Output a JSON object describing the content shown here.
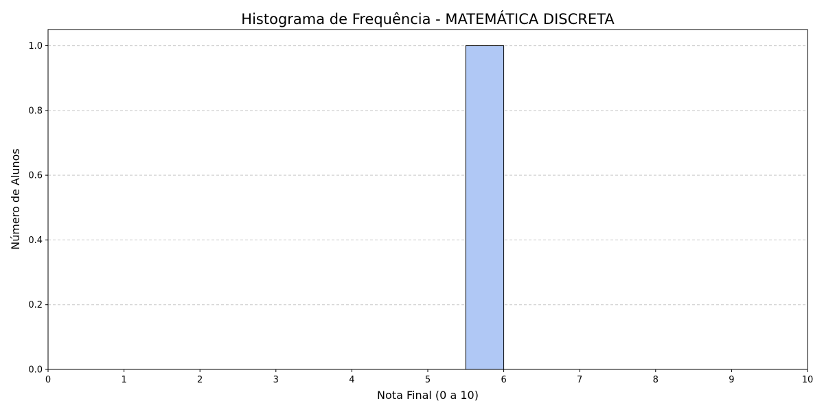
{
  "chart_data": {
    "type": "bar",
    "title": "Histograma de Frequência - MATEMÁTICA DISCRETA",
    "xlabel": "Nota Final (0 a 10)",
    "ylabel": "Número de Alunos",
    "xlim": [
      0,
      10
    ],
    "ylim": [
      0,
      1.05
    ],
    "x_ticks": [
      "0",
      "1",
      "2",
      "3",
      "4",
      "5",
      "6",
      "7",
      "8",
      "9",
      "10"
    ],
    "y_ticks": [
      "0.0",
      "0.2",
      "0.4",
      "0.6",
      "0.8",
      "1.0"
    ],
    "bin_width": 0.5,
    "bins": [
      {
        "start": 5.5,
        "end": 6.0,
        "count": 1
      }
    ],
    "grid": "y-dashed",
    "bar_color": "#b0c8f5",
    "edge_color": "#000000",
    "grid_color": "#c8c8c8"
  }
}
